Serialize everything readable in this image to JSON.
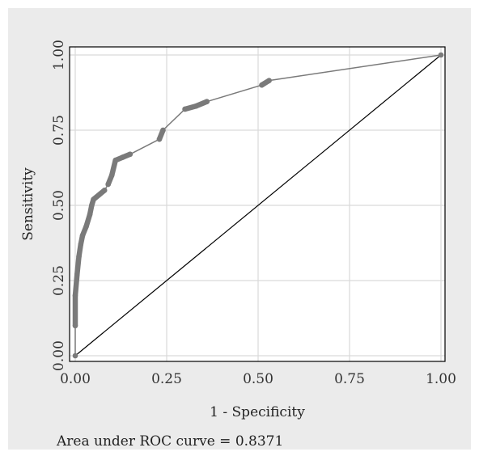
{
  "chart_data": {
    "type": "line",
    "title": "",
    "xlabel": "1 - Specificity",
    "ylabel": "Sensitivity",
    "xlim": [
      0,
      1
    ],
    "ylim": [
      0,
      1
    ],
    "x_ticks": [
      "0.00",
      "0.25",
      "0.50",
      "0.75",
      "1.00"
    ],
    "y_ticks": [
      "0.00",
      "0.25",
      "0.50",
      "0.75",
      "1.00"
    ],
    "grid": true,
    "legend": "none",
    "colors": {
      "roc": "#7a7a7a",
      "reference": "#000000",
      "background": "#ebebeb",
      "plot": "#ffffff",
      "grid": "#d9d9d9"
    },
    "series": [
      {
        "name": "",
        "points": [
          [
            0.0,
            0.0
          ],
          [
            0.0,
            0.1
          ],
          [
            0.0,
            0.2
          ],
          [
            0.005,
            0.27
          ],
          [
            0.01,
            0.33
          ],
          [
            0.015,
            0.37
          ],
          [
            0.02,
            0.4
          ],
          [
            0.03,
            0.43
          ],
          [
            0.04,
            0.47
          ],
          [
            0.045,
            0.5
          ],
          [
            0.05,
            0.52
          ],
          [
            0.08,
            0.55
          ],
          [
            0.09,
            0.57
          ],
          [
            0.1,
            0.6
          ],
          [
            0.11,
            0.65
          ],
          [
            0.13,
            0.66
          ],
          [
            0.15,
            0.67
          ],
          [
            0.23,
            0.72
          ],
          [
            0.24,
            0.75
          ],
          [
            0.3,
            0.82
          ],
          [
            0.33,
            0.83
          ],
          [
            0.36,
            0.845
          ],
          [
            0.51,
            0.9
          ],
          [
            0.53,
            0.915
          ],
          [
            1.0,
            1.0
          ]
        ]
      },
      {
        "name": "",
        "points": [
          [
            0,
            0
          ],
          [
            1,
            1
          ]
        ]
      }
    ]
  },
  "annotation": "Area under ROC curve = 0.8371"
}
